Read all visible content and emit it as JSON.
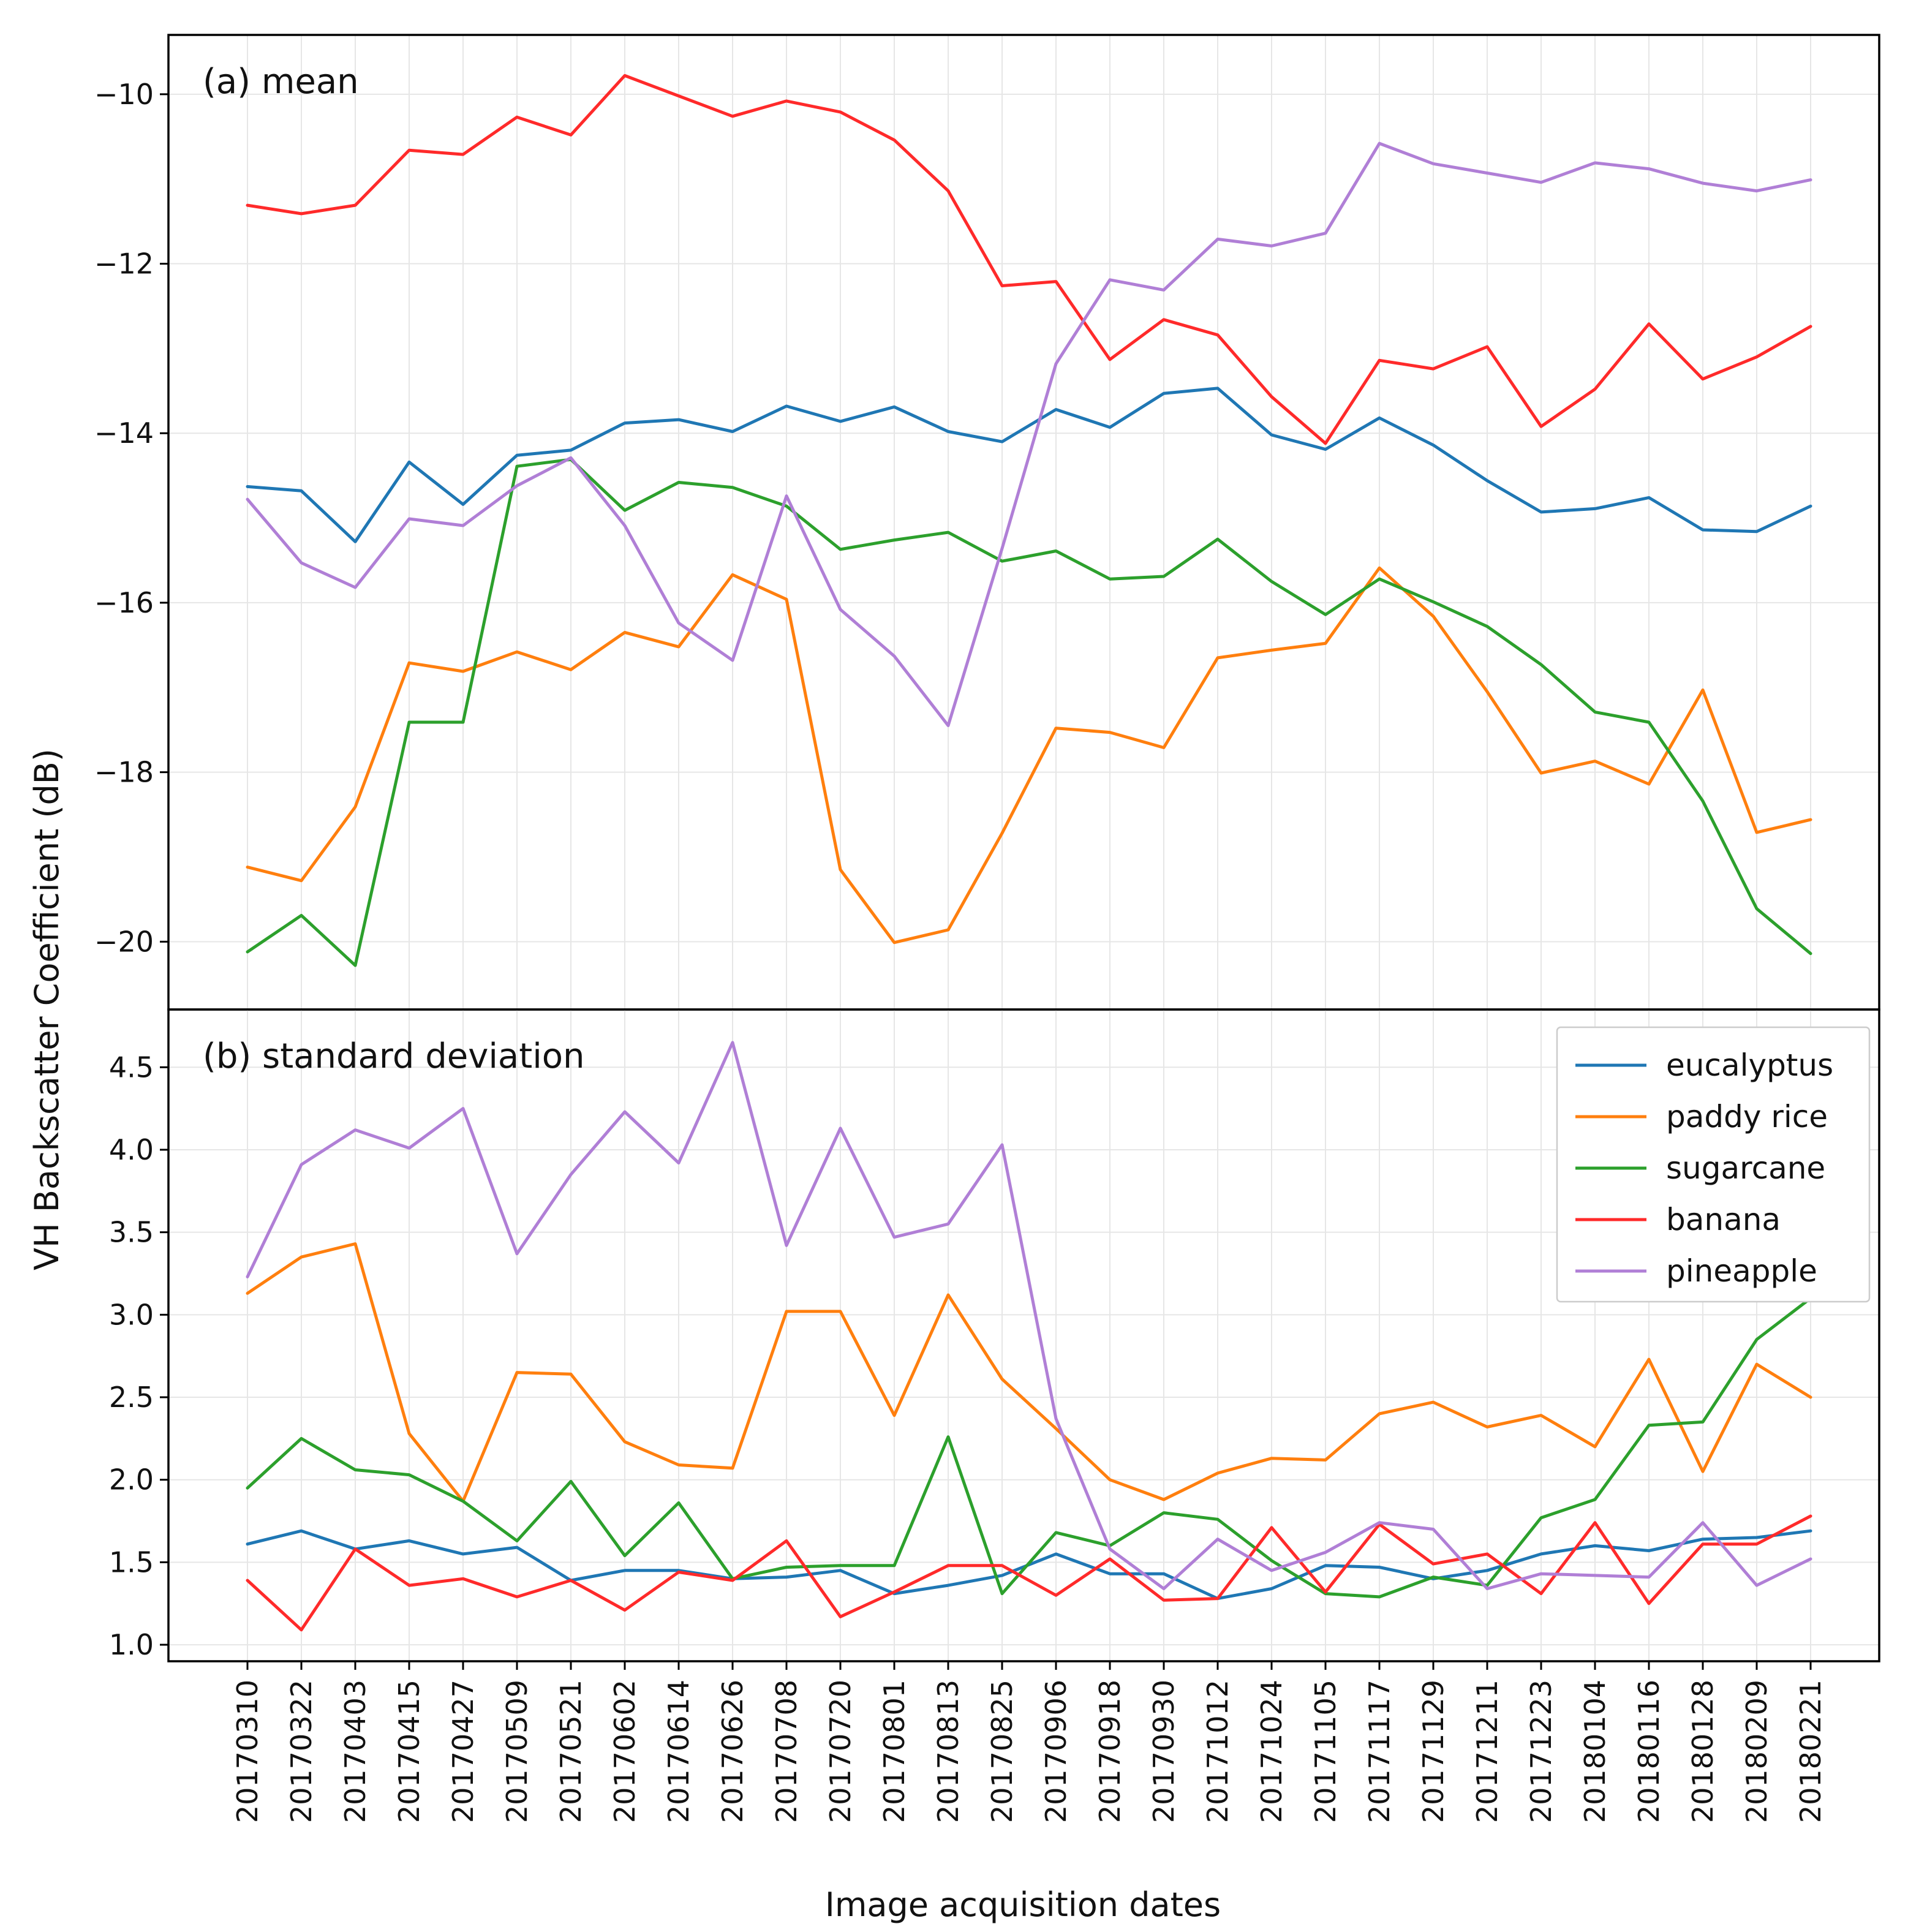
{
  "chart_data": {
    "type": "line",
    "ylabel": "VH Backscatter Coefficient (dB)",
    "xlabel": "Image acquisition dates",
    "categories": [
      "20170310",
      "20170322",
      "20170403",
      "20170415",
      "20170427",
      "20170509",
      "20170521",
      "20170602",
      "20170614",
      "20170626",
      "20170708",
      "20170720",
      "20170801",
      "20170813",
      "20170825",
      "20170906",
      "20170918",
      "20170930",
      "20171012",
      "20171024",
      "20171105",
      "20171117",
      "20171129",
      "20171211",
      "20171223",
      "20180104",
      "20180116",
      "20180128",
      "20180209",
      "20180221"
    ],
    "legend": {
      "placement": "right of panel (b), near top"
    },
    "colors": {
      "eucalyptus": "#1f77b4",
      "paddy rice": "#ff7f0e",
      "sugarcane": "#2ca02c",
      "banana": "#ff2a2a",
      "pineapple": "#b07fd6"
    },
    "panels": [
      {
        "title": "(a) mean",
        "ylim": [
          -20.8,
          -9.3
        ],
        "yticks": [
          -20,
          -18,
          -16,
          -14,
          -12,
          -10
        ],
        "ytick_labels": [
          "−20",
          "−18",
          "−16",
          "−14",
          "−12",
          "−10"
        ],
        "grid": true,
        "series": [
          {
            "name": "eucalyptus",
            "values": [
              -14.63,
              -14.68,
              -15.28,
              -14.34,
              -14.84,
              -14.26,
              -14.2,
              -13.88,
              -13.84,
              -13.98,
              -13.68,
              -13.86,
              -13.69,
              -13.98,
              -14.1,
              -13.72,
              -13.93,
              -13.53,
              -13.47,
              -14.02,
              -14.19,
              -13.82,
              -14.14,
              -14.56,
              -14.93,
              -14.89,
              -14.76,
              -15.14,
              -15.16,
              -14.86
            ]
          },
          {
            "name": "paddy rice",
            "values": [
              -19.12,
              -19.28,
              -18.41,
              -16.71,
              -16.81,
              -16.58,
              -16.79,
              -16.35,
              -16.52,
              -15.67,
              -15.96,
              -19.15,
              -20.01,
              -19.86,
              -18.72,
              -17.48,
              -17.53,
              -17.71,
              -16.65,
              -16.56,
              -16.48,
              -15.59,
              -16.16,
              -17.05,
              -18.01,
              -17.87,
              -18.14,
              -17.03,
              -18.71,
              -18.56
            ]
          },
          {
            "name": "sugarcane",
            "values": [
              -20.12,
              -19.69,
              -20.28,
              -17.41,
              -17.41,
              -14.39,
              -14.31,
              -14.91,
              -14.58,
              -14.64,
              -14.86,
              -15.37,
              -15.26,
              -15.17,
              -15.51,
              -15.39,
              -15.72,
              -15.69,
              -15.25,
              -15.75,
              -16.14,
              -15.72,
              -15.99,
              -16.28,
              -16.73,
              -17.29,
              -17.41,
              -18.34,
              -19.61,
              -20.14
            ]
          },
          {
            "name": "banana",
            "values": [
              -11.31,
              -11.41,
              -11.31,
              -10.66,
              -10.71,
              -10.27,
              -10.48,
              -9.78,
              -10.02,
              -10.26,
              -10.08,
              -10.21,
              -10.54,
              -11.14,
              -12.26,
              -12.21,
              -13.13,
              -12.66,
              -12.84,
              -13.57,
              -14.12,
              -13.14,
              -13.24,
              -12.98,
              -13.92,
              -13.48,
              -12.71,
              -13.36,
              -13.1,
              -12.74
            ]
          },
          {
            "name": "pineapple",
            "values": [
              -14.78,
              -15.53,
              -15.82,
              -15.01,
              -15.09,
              -14.62,
              -14.29,
              -15.09,
              -16.24,
              -16.68,
              -14.74,
              -16.08,
              -16.63,
              -17.45,
              -15.36,
              -13.18,
              -12.19,
              -12.31,
              -11.71,
              -11.79,
              -11.64,
              -10.58,
              -10.82,
              -10.93,
              -11.04,
              -10.81,
              -10.88,
              -11.05,
              -11.14,
              -11.01
            ]
          }
        ]
      },
      {
        "title": "(b) standard deviation",
        "ylim": [
          0.9,
          4.85
        ],
        "yticks": [
          1.0,
          1.5,
          2.0,
          2.5,
          3.0,
          3.5,
          4.0,
          4.5
        ],
        "ytick_labels": [
          "1.0",
          "1.5",
          "2.0",
          "2.5",
          "3.0",
          "3.5",
          "4.0",
          "4.5"
        ],
        "grid": true,
        "series": [
          {
            "name": "eucalyptus",
            "values": [
              1.61,
              1.69,
              1.58,
              1.63,
              1.55,
              1.59,
              1.39,
              1.45,
              1.45,
              1.4,
              1.41,
              1.45,
              1.31,
              1.36,
              1.42,
              1.55,
              1.43,
              1.43,
              1.28,
              1.34,
              1.48,
              1.47,
              1.4,
              1.45,
              1.55,
              1.6,
              1.57,
              1.64,
              1.65,
              1.69
            ]
          },
          {
            "name": "paddy rice",
            "values": [
              3.13,
              3.35,
              3.43,
              2.28,
              1.87,
              2.65,
              2.64,
              2.23,
              2.09,
              2.07,
              3.02,
              3.02,
              2.39,
              3.12,
              2.61,
              2.31,
              2.0,
              1.88,
              2.04,
              2.13,
              2.12,
              2.4,
              2.47,
              2.32,
              2.39,
              2.2,
              2.73,
              2.05,
              2.7,
              2.5
            ]
          },
          {
            "name": "sugarcane",
            "values": [
              1.95,
              2.25,
              2.06,
              2.03,
              1.87,
              1.63,
              1.99,
              1.54,
              1.86,
              1.4,
              1.47,
              1.48,
              1.48,
              2.26,
              1.31,
              1.68,
              1.6,
              1.8,
              1.76,
              1.51,
              1.31,
              1.29,
              1.41,
              1.36,
              1.77,
              1.88,
              2.33,
              2.35,
              2.85,
              3.1
            ]
          },
          {
            "name": "banana",
            "values": [
              1.39,
              1.09,
              1.58,
              1.36,
              1.4,
              1.29,
              1.39,
              1.21,
              1.44,
              1.39,
              1.63,
              1.17,
              1.32,
              1.48,
              1.48,
              1.3,
              1.52,
              1.27,
              1.28,
              1.71,
              1.32,
              1.73,
              1.49,
              1.55,
              1.31,
              1.74,
              1.25,
              1.61,
              1.61,
              1.78
            ]
          },
          {
            "name": "pineapple",
            "values": [
              3.23,
              3.91,
              4.12,
              4.01,
              4.25,
              3.37,
              3.85,
              4.23,
              3.92,
              4.65,
              3.42,
              4.13,
              3.47,
              3.55,
              4.03,
              2.37,
              1.58,
              1.34,
              1.64,
              1.45,
              1.56,
              1.74,
              1.7,
              1.34,
              1.43,
              1.42,
              1.41,
              1.74,
              1.36,
              1.52
            ]
          }
        ]
      }
    ]
  }
}
